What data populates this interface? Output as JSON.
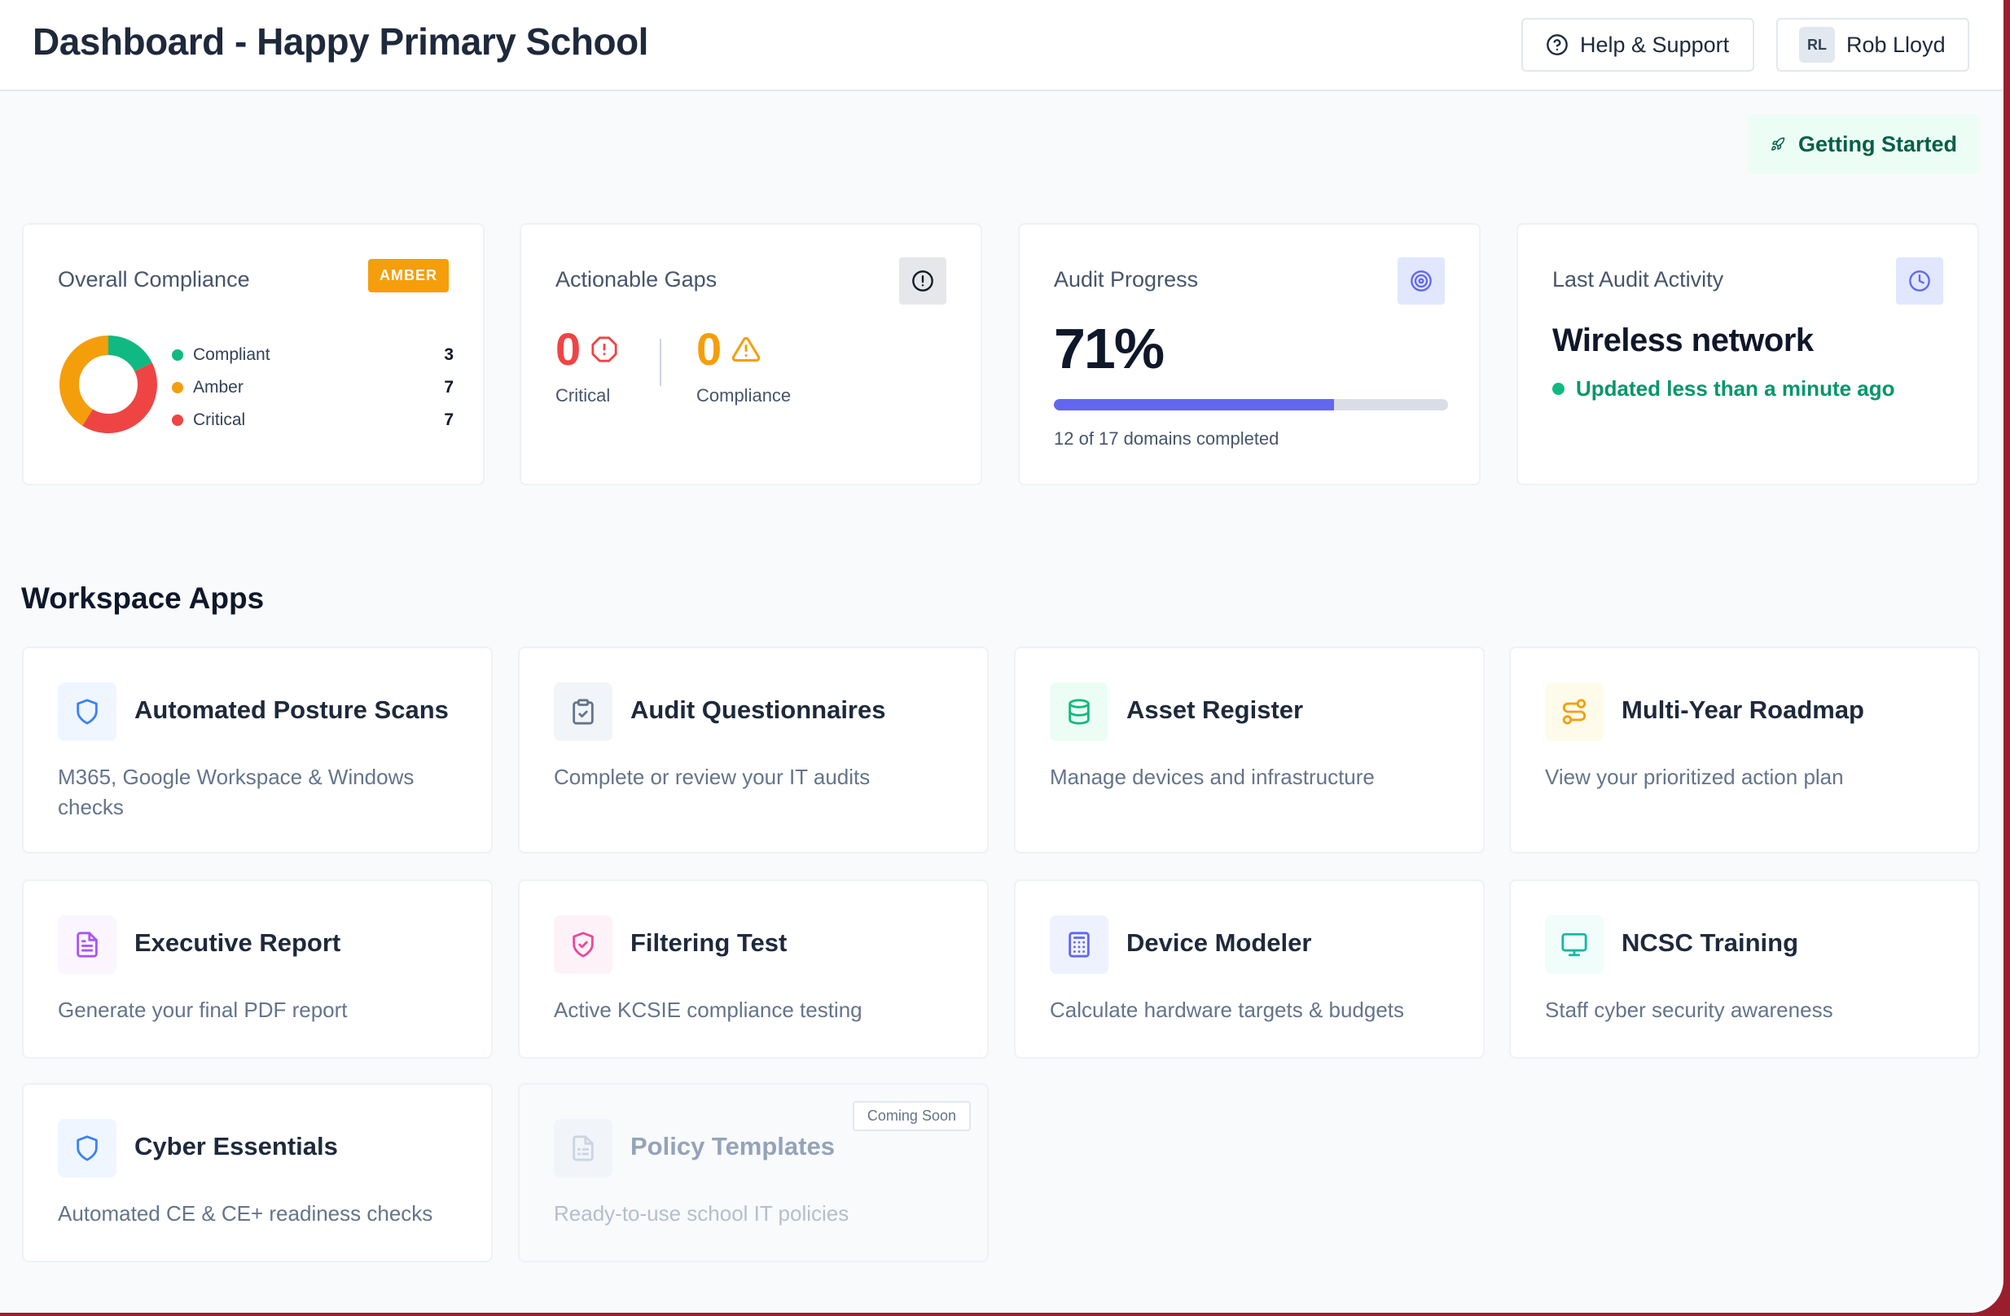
{
  "header": {
    "title": "Dashboard - Happy Primary School",
    "help_label": "Help & Support",
    "user_initials": "RL",
    "user_name": "Rob Lloyd"
  },
  "getting_started_label": "Getting Started",
  "stats": {
    "compliance": {
      "label": "Overall Compliance",
      "badge": "AMBER",
      "legend": [
        {
          "label": "Compliant",
          "value": "3",
          "color": "#10b981"
        },
        {
          "label": "Amber",
          "value": "7",
          "color": "#f59e0b"
        },
        {
          "label": "Critical",
          "value": "7",
          "color": "#ef4444"
        }
      ]
    },
    "gaps": {
      "label": "Actionable Gaps",
      "critical_value": "0",
      "critical_label": "Critical",
      "compliance_value": "0",
      "compliance_label": "Compliance"
    },
    "audit": {
      "label": "Audit Progress",
      "percent_text": "71%",
      "progress": 0.71,
      "detail": "12 of 17 domains completed"
    },
    "activity": {
      "label": "Last Audit Activity",
      "title": "Wireless network",
      "status": "Updated less than a minute ago"
    }
  },
  "workspace": {
    "title": "Workspace Apps",
    "apps": [
      {
        "title": "Automated Posture Scans",
        "desc": "M365, Google Workspace & Windows checks",
        "icon": "shield-icon",
        "color": "#3b82f6"
      },
      {
        "title": "Audit Questionnaires",
        "desc": "Complete or review your IT audits",
        "icon": "clipboard-check-icon",
        "color": "#64748b"
      },
      {
        "title": "Asset Register",
        "desc": "Manage devices and infrastructure",
        "icon": "database-icon",
        "color": "#10b981"
      },
      {
        "title": "Multi-Year Roadmap",
        "desc": "View your prioritized action plan",
        "icon": "route-icon",
        "color": "#f59e0b"
      },
      {
        "title": "Executive Report",
        "desc": "Generate your final PDF report",
        "icon": "file-text-icon",
        "color": "#a855f7"
      },
      {
        "title": "Filtering Test",
        "desc": "Active KCSIE compliance testing",
        "icon": "shield-check-icon",
        "color": "#ec4899"
      },
      {
        "title": "Device Modeler",
        "desc": "Calculate hardware targets & budgets",
        "icon": "calculator-icon",
        "color": "#6366f1"
      },
      {
        "title": "NCSC Training",
        "desc": "Staff cyber security awareness",
        "icon": "monitor-icon",
        "color": "#14b8a6"
      },
      {
        "title": "Cyber Essentials",
        "desc": "Automated CE & CE+ readiness checks",
        "icon": "shield-icon",
        "color": "#3b82f6"
      },
      {
        "title": "Policy Templates",
        "desc": "Ready-to-use school IT policies",
        "icon": "file-list-icon",
        "color": "#cbd5e1",
        "badge": "Coming Soon"
      }
    ]
  }
}
